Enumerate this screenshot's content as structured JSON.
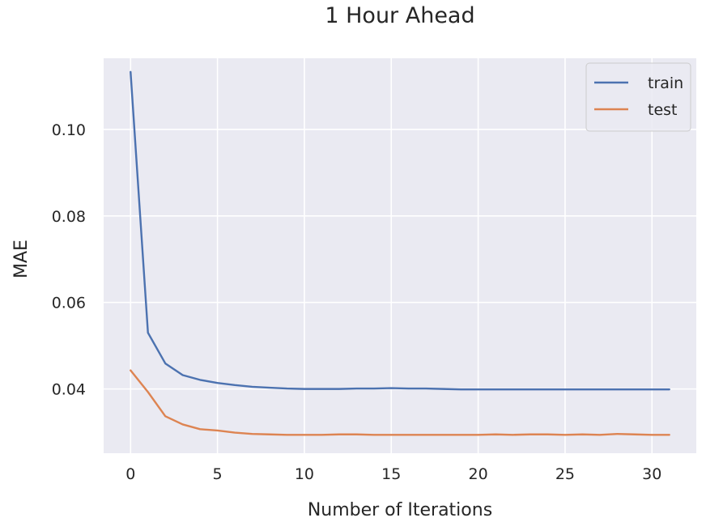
{
  "chart_data": {
    "type": "line",
    "title": "1 Hour Ahead",
    "xlabel": "Number of Iterations",
    "ylabel": "MAE",
    "xlim": [
      -1.55,
      32.55
    ],
    "ylim": [
      0.02515,
      0.11645
    ],
    "xticks": [
      0,
      5,
      10,
      15,
      20,
      25,
      30
    ],
    "xtick_labels": [
      "0",
      "5",
      "10",
      "15",
      "20",
      "25",
      "30"
    ],
    "yticks": [
      0.04,
      0.06,
      0.08,
      0.1
    ],
    "ytick_labels": [
      "0.04",
      "0.06",
      "0.08",
      "0.10"
    ],
    "grid": true,
    "legend_position": "top-right",
    "x": [
      0,
      1,
      2,
      3,
      4,
      5,
      6,
      7,
      8,
      9,
      10,
      11,
      12,
      13,
      14,
      15,
      16,
      17,
      18,
      19,
      20,
      21,
      22,
      23,
      24,
      25,
      26,
      27,
      28,
      29,
      30,
      31
    ],
    "series": [
      {
        "name": "train",
        "color": "#4c72b0",
        "values": [
          0.1133,
          0.053,
          0.0459,
          0.0432,
          0.0421,
          0.0414,
          0.0409,
          0.0405,
          0.0403,
          0.0401,
          0.04,
          0.04,
          0.04,
          0.0401,
          0.0401,
          0.0402,
          0.0401,
          0.0401,
          0.04,
          0.0399,
          0.0399,
          0.0399,
          0.0399,
          0.0399,
          0.0399,
          0.0399,
          0.0399,
          0.0399,
          0.0399,
          0.0399,
          0.0399,
          0.0399
        ]
      },
      {
        "name": "test",
        "color": "#dd8452",
        "values": [
          0.0443,
          0.0393,
          0.0337,
          0.0318,
          0.0307,
          0.0304,
          0.0299,
          0.0296,
          0.0295,
          0.0294,
          0.0294,
          0.0294,
          0.0295,
          0.0295,
          0.0294,
          0.0294,
          0.0294,
          0.0294,
          0.0294,
          0.0294,
          0.0294,
          0.0295,
          0.0294,
          0.0295,
          0.0295,
          0.0294,
          0.0295,
          0.0294,
          0.0296,
          0.0295,
          0.0294,
          0.0294
        ]
      }
    ],
    "colors": {
      "plot_background": "#eaeaf2",
      "grid": "#ffffff",
      "text": "#262626"
    }
  }
}
